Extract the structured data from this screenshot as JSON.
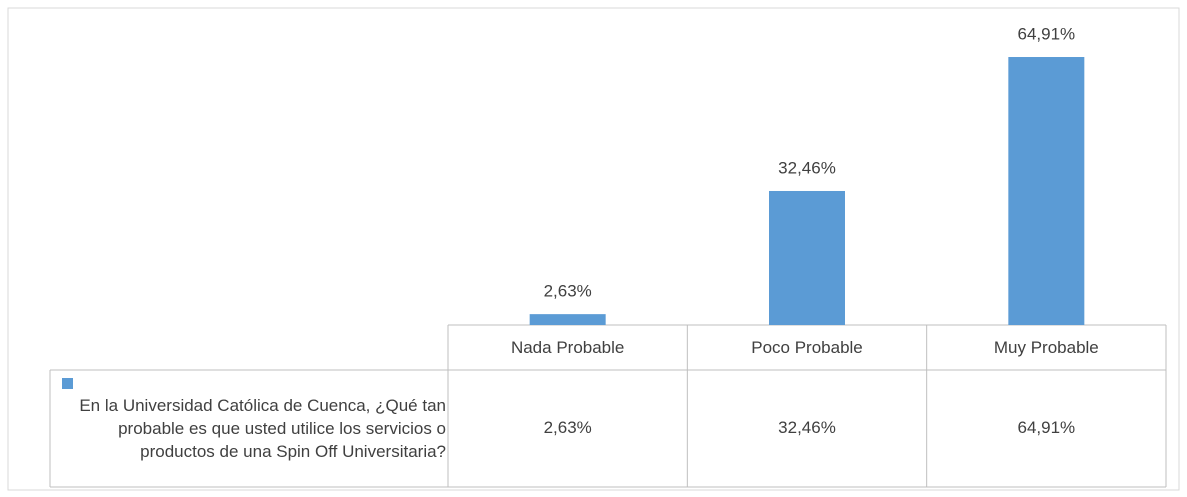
{
  "chart_data": {
    "type": "bar",
    "series_name": "En la Universidad Católica de Cuenca, ¿Qué tan probable es que usted utilice los servicios o productos de una Spin Off Universitaria?",
    "categories": [
      "Nada Probable",
      "Poco Probable",
      "Muy Probable"
    ],
    "values": [
      2.63,
      32.46,
      64.91
    ],
    "value_labels": [
      "2,63%",
      "32,46%",
      "64,91%"
    ],
    "color": "#5b9bd5",
    "ylim": [
      0,
      70
    ]
  }
}
